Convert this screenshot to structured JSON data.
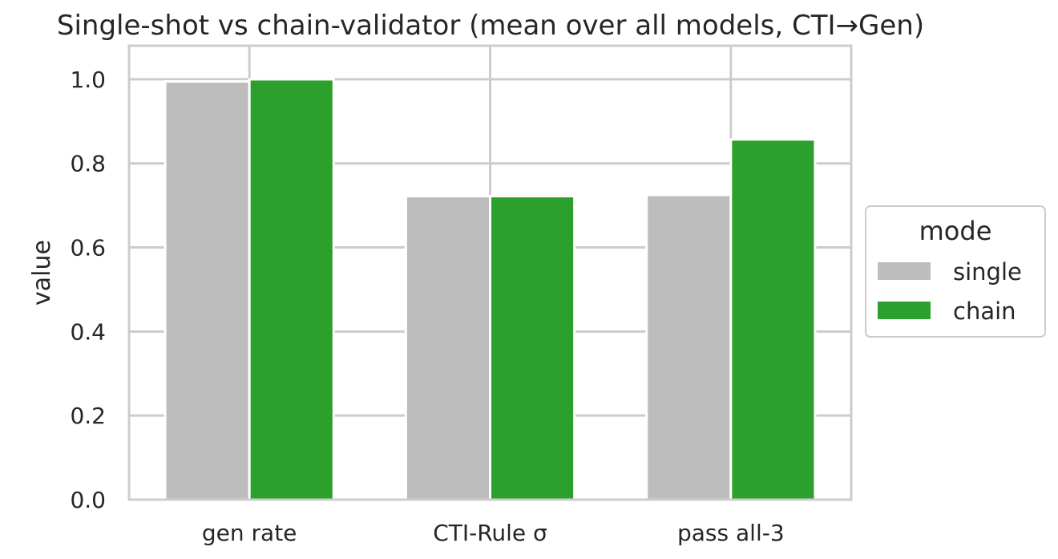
{
  "chart_data": {
    "type": "bar",
    "title": "Single-shot vs chain-validator (mean over all models, CTI→Gen)",
    "xlabel": "",
    "ylabel": "value",
    "categories": [
      "gen rate",
      "CTI-Rule σ",
      "pass all-3"
    ],
    "series": [
      {
        "name": "single",
        "color": "#bdbdbd",
        "values": [
          0.995,
          0.722,
          0.725
        ]
      },
      {
        "name": "chain",
        "color": "#2ca02c",
        "values": [
          1.0,
          0.722,
          0.857
        ]
      }
    ],
    "ylim": [
      0,
      1.08
    ],
    "yticks": [
      "0.0",
      "0.2",
      "0.4",
      "0.6",
      "0.8",
      "1.0"
    ],
    "grid": true,
    "legend": {
      "title": "mode",
      "placement": "center-right-outside"
    }
  }
}
